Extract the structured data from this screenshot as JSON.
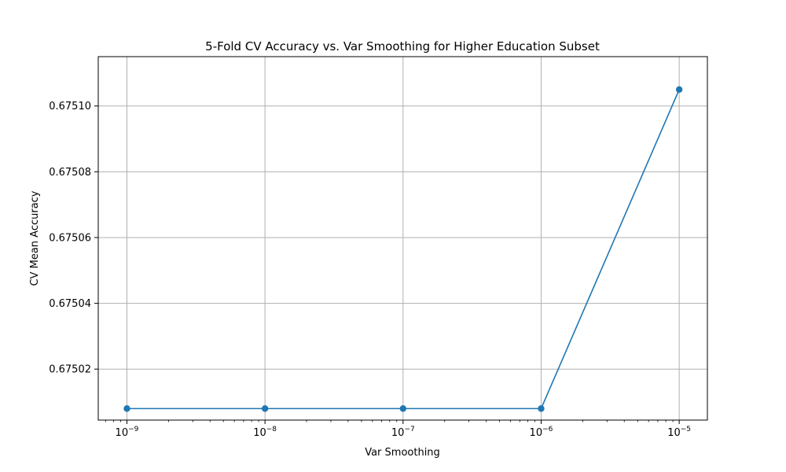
{
  "chart_data": {
    "type": "line",
    "title": "5-Fold CV Accuracy vs. Var Smoothing for Higher Education Subset",
    "xlabel": "Var Smoothing",
    "ylabel": "CV Mean Accuracy",
    "x_scale": "log",
    "grid": true,
    "x": [
      1e-09,
      1e-08,
      1e-07,
      1e-06,
      1e-05
    ],
    "series": [
      {
        "color": "#1f77b4",
        "marker": "circle",
        "values": [
          0.675008,
          0.675008,
          0.675008,
          0.675008,
          0.675105
        ]
      }
    ],
    "xlim": [
      6.2e-10,
      1.6e-05
    ],
    "ylim": [
      0.6750045,
      0.675115
    ],
    "x_ticks": [
      {
        "base": "10",
        "exp": "−9"
      },
      {
        "base": "10",
        "exp": "−8"
      },
      {
        "base": "10",
        "exp": "−7"
      },
      {
        "base": "10",
        "exp": "−6"
      },
      {
        "base": "10",
        "exp": "−5"
      }
    ],
    "x_tick_values": [
      1e-09,
      1e-08,
      1e-07,
      1e-06,
      1e-05
    ],
    "y_ticks": [
      "0.67502",
      "0.67504",
      "0.67506",
      "0.67508",
      "0.67510"
    ],
    "y_tick_values": [
      0.67502,
      0.67504,
      0.67506,
      0.67508,
      0.6751
    ]
  }
}
